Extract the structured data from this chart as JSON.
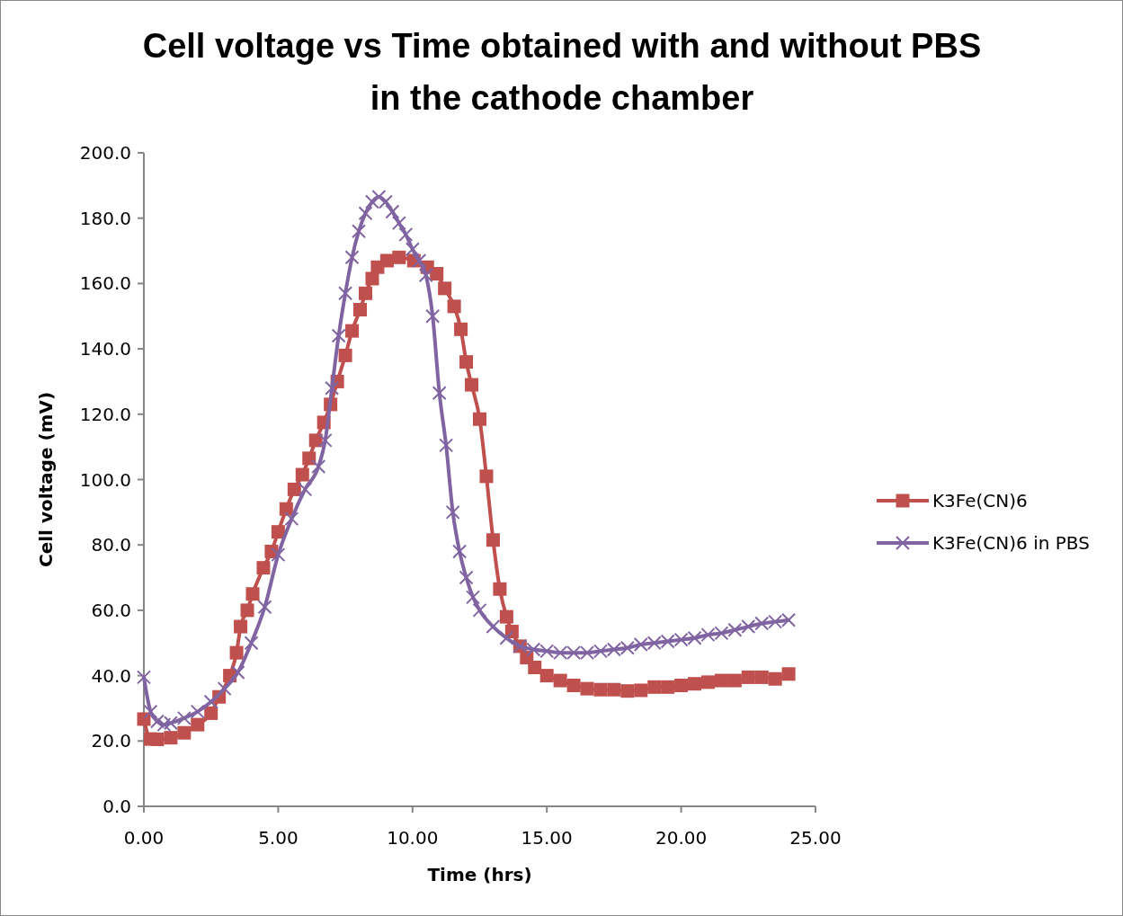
{
  "chart_data": {
    "type": "line",
    "title": "Cell voltage vs Time obtained with and without PBS in the cathode chamber",
    "xlabel": "Time (hrs)",
    "ylabel": "Cell voltage  (mV)",
    "xlim": [
      0,
      25
    ],
    "xticks": [
      {
        "value": 0,
        "label": "0.00"
      },
      {
        "value": 5,
        "label": "5.00"
      },
      {
        "value": 10,
        "label": "10.00"
      },
      {
        "value": 15,
        "label": "15.00"
      },
      {
        "value": 20,
        "label": "20.00"
      },
      {
        "value": 25,
        "label": "25.00"
      }
    ],
    "ylim": [
      0,
      200
    ],
    "yticks": [
      {
        "value": 0,
        "label": "0.0"
      },
      {
        "value": 20,
        "label": "20.0"
      },
      {
        "value": 40,
        "label": "40.0"
      },
      {
        "value": 60,
        "label": "60.0"
      },
      {
        "value": 80,
        "label": "80.0"
      },
      {
        "value": 100,
        "label": "100.0"
      },
      {
        "value": 120,
        "label": "120.0"
      },
      {
        "value": 140,
        "label": "140.0"
      },
      {
        "value": 160,
        "label": "160.0"
      },
      {
        "value": 180,
        "label": "180.0"
      },
      {
        "value": 200,
        "label": "200.0"
      }
    ],
    "grid": false,
    "legend": "right",
    "line_style": "solid",
    "series": [
      {
        "name": "K3Fe(CN)6",
        "color": "#c0504d",
        "marker": "square",
        "x": [
          0,
          0.25,
          0.5,
          1,
          1.5,
          2,
          2.5,
          2.8,
          3.2,
          3.45,
          3.6,
          3.85,
          4.05,
          4.45,
          4.75,
          5,
          5.3,
          5.6,
          5.9,
          6.15,
          6.4,
          6.7,
          6.95,
          7.2,
          7.5,
          7.75,
          8.05,
          8.25,
          8.5,
          8.7,
          9.05,
          9.5,
          10.05,
          10.55,
          10.9,
          11.2,
          11.55,
          11.8,
          12,
          12.2,
          12.5,
          12.75,
          13,
          13.25,
          13.5,
          13.7,
          14,
          14.25,
          14.55,
          15,
          15.5,
          16,
          16.5,
          17,
          17.5,
          18,
          18.5,
          19,
          19.5,
          20,
          20.5,
          21,
          21.5,
          22,
          22.5,
          23,
          23.5,
          24
        ],
        "values": [
          26.7,
          20.6,
          20.5,
          21,
          22.5,
          25,
          28.5,
          33.5,
          40,
          47,
          55,
          60,
          65,
          73,
          78,
          84,
          91,
          97,
          101.5,
          106.5,
          112,
          117.5,
          123,
          130,
          138,
          145.5,
          152,
          157,
          161.5,
          165,
          167,
          168,
          167,
          165,
          163,
          158.5,
          153,
          146,
          136,
          129,
          118.5,
          101,
          81.5,
          66.5,
          58,
          53.5,
          49,
          45.5,
          42.5,
          40,
          38.5,
          37,
          36,
          35.7,
          35.7,
          35.3,
          35.5,
          36.5,
          36.5,
          37,
          37.5,
          38,
          38.5,
          38.5,
          39.5,
          39.5,
          39,
          40.5
        ]
      },
      {
        "name": "K3Fe(CN)6 in PBS",
        "color": "#8064a2",
        "marker": "cross",
        "x": [
          0,
          0.25,
          0.5,
          0.75,
          1,
          1.5,
          2,
          2.5,
          3,
          3.5,
          4,
          4.5,
          5,
          5.5,
          6,
          6.5,
          6.75,
          7,
          7.25,
          7.5,
          7.75,
          8,
          8.25,
          8.5,
          8.75,
          9,
          9.25,
          9.5,
          9.75,
          10,
          10.25,
          10.5,
          10.75,
          11,
          11.25,
          11.5,
          11.75,
          12,
          12.25,
          12.5,
          13,
          13.5,
          14,
          14.5,
          15,
          15.5,
          16,
          16.5,
          17,
          17.5,
          18,
          18.5,
          19,
          19.5,
          20,
          20.5,
          21,
          21.5,
          22,
          22.5,
          23,
          23.5,
          24
        ],
        "values": [
          39.5,
          29,
          26,
          25,
          25.5,
          27,
          29,
          32,
          36,
          41,
          50,
          61,
          77,
          88,
          97,
          104,
          112,
          128,
          144,
          157,
          168,
          176,
          181.5,
          185,
          186.5,
          185,
          182,
          178.5,
          175,
          170.5,
          167,
          162.5,
          150,
          126.5,
          110.5,
          90,
          78,
          70,
          64,
          60,
          55,
          51.5,
          49,
          48,
          47.5,
          47,
          47,
          47,
          47.5,
          48,
          48.5,
          49.5,
          50,
          50.5,
          51,
          51.5,
          52.5,
          53,
          54,
          55,
          56,
          56.5,
          57
        ]
      }
    ]
  }
}
